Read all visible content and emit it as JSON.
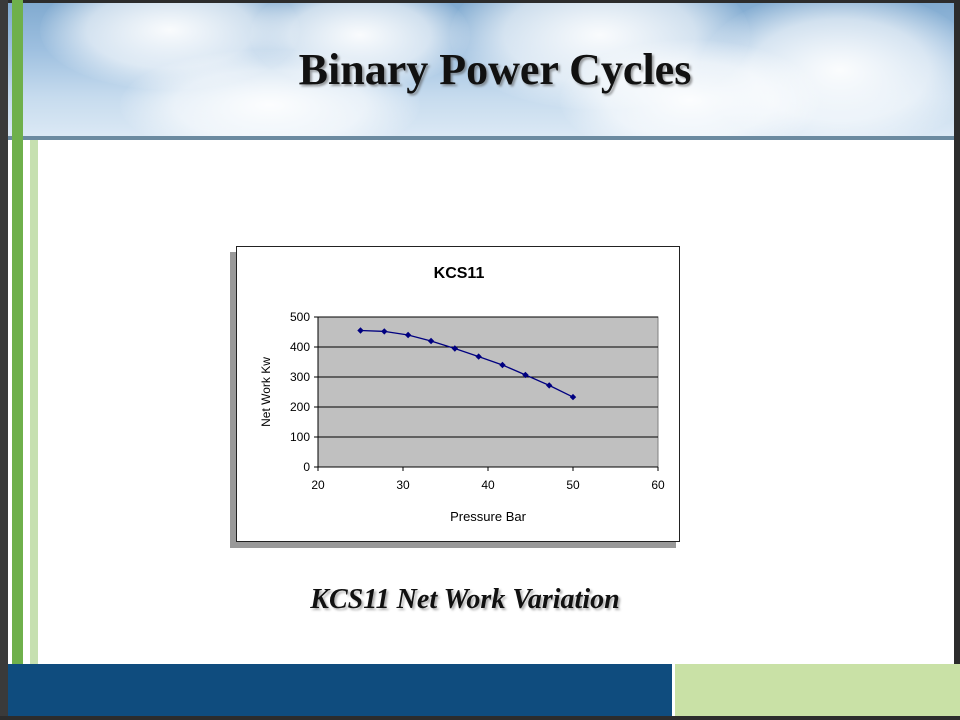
{
  "slide": {
    "title": "Binary Power Cycles",
    "caption": "KCS11 Net Work Variation"
  },
  "chart_data": {
    "type": "line",
    "title": "KCS11",
    "xlabel": "Pressure Bar",
    "ylabel": "Net Work Kw",
    "xlim": [
      20,
      60
    ],
    "ylim": [
      0,
      500
    ],
    "x_ticks": [
      20,
      30,
      40,
      50,
      60
    ],
    "y_ticks": [
      0,
      100,
      200,
      300,
      400,
      500
    ],
    "grid": true,
    "legend": "none",
    "series": [
      {
        "x": [
          25,
          27.8,
          30.6,
          33.3,
          36.1,
          38.9,
          41.7,
          44.4,
          47.2,
          50
        ],
        "y": [
          455,
          452,
          440,
          420,
          395,
          368,
          340,
          307,
          272,
          233
        ],
        "color": "#000080"
      }
    ],
    "colors": {
      "plot_bg": "#c0c0c0",
      "line": "#000080",
      "marker": "#000080"
    }
  }
}
